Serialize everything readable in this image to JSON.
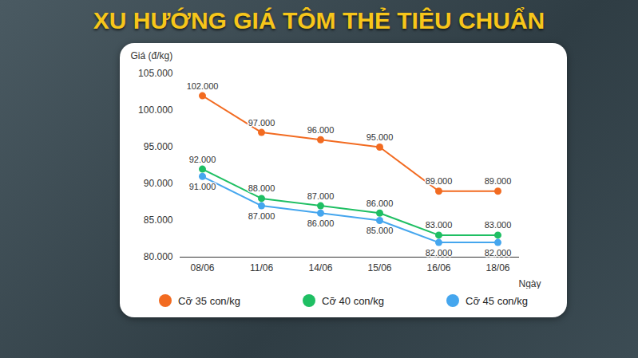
{
  "chart_data": {
    "type": "line",
    "title": "XU HƯỚNG GIÁ TÔM THẺ TIÊU CHUẨN",
    "y_label": "Giá (đ/kg)",
    "x_label": "Ngày",
    "categories": [
      "08/06",
      "11/06",
      "14/06",
      "15/06",
      "16/06",
      "18/06"
    ],
    "series": [
      {
        "name": "Cỡ 35 con/kg",
        "color": "#f26b21",
        "marker": "circle",
        "values": [
          102000,
          97000,
          96000,
          95000,
          89000,
          89000
        ],
        "value_labels": [
          "102.000",
          "97.000",
          "96.000",
          "95.000",
          "89.000",
          "89.000"
        ]
      },
      {
        "name": "Cỡ 40 con/kg",
        "color": "#1fbf63",
        "marker": "circle",
        "values": [
          92000,
          88000,
          87000,
          86000,
          83000,
          83000
        ],
        "value_labels": [
          "92.000",
          "88.000",
          "87.000",
          "86.000",
          "83.000",
          "83.000"
        ]
      },
      {
        "name": "Cỡ 45 con/kg",
        "color": "#45a6ee",
        "marker": "circle",
        "values": [
          91000,
          87000,
          86000,
          85000,
          82000,
          82000
        ],
        "value_labels": [
          "91.000",
          "87.000",
          "86.000",
          "85.000",
          "82.000",
          "82.000"
        ]
      }
    ],
    "ylim": [
      80000,
      105000
    ],
    "yticks": [
      {
        "value": 80000,
        "label": "80.000"
      },
      {
        "value": 85000,
        "label": "85.000"
      },
      {
        "value": 90000,
        "label": "90.000"
      },
      {
        "value": 95000,
        "label": "95.000"
      },
      {
        "value": 100000,
        "label": "100.000"
      },
      {
        "value": 105000,
        "label": "105.000"
      }
    ],
    "grid": false,
    "data_labels": true,
    "legend": "bottom"
  }
}
